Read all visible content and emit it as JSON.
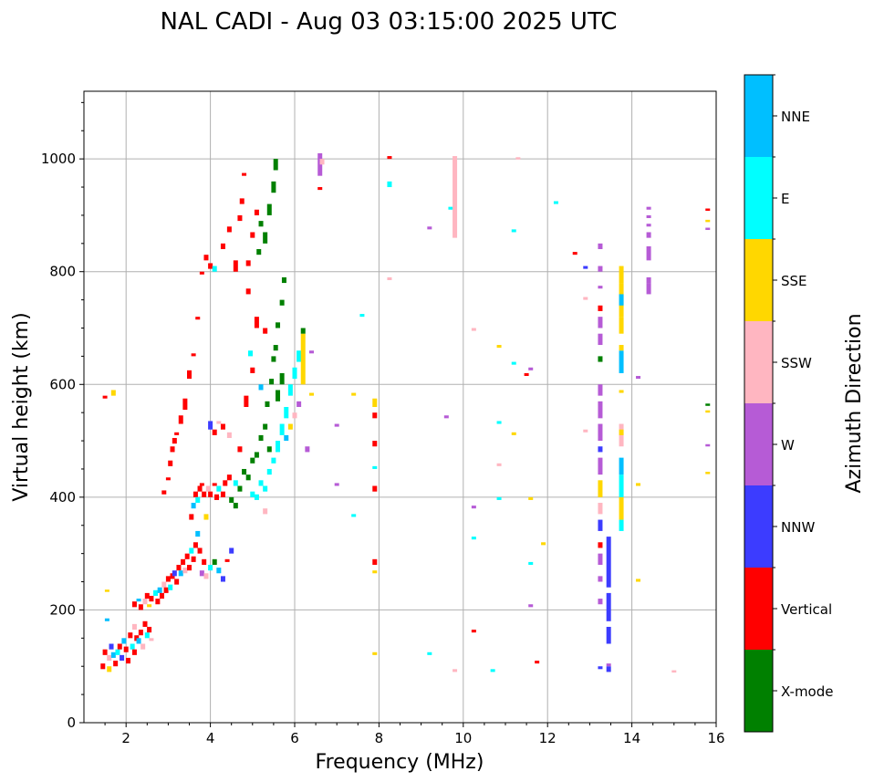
{
  "chart_data": {
    "type": "scatter",
    "title": "NAL CADI - Aug 03 03:15:00 2025 UTC",
    "xlabel": "Frequency (MHz)",
    "ylabel": "Virtual height (km)",
    "xlim": [
      1,
      16
    ],
    "ylim": [
      0,
      1120
    ],
    "xticks": [
      2,
      4,
      6,
      8,
      10,
      12,
      14,
      16
    ],
    "yticks": [
      0,
      200,
      400,
      600,
      800,
      1000
    ],
    "grid": true,
    "colorbar": {
      "label": "Azimuth Direction",
      "placement": "right",
      "categories": [
        {
          "name": "X-mode",
          "color": "#008000"
        },
        {
          "name": "Vertical",
          "color": "#ff0000"
        },
        {
          "name": "NNW",
          "color": "#3c3cff"
        },
        {
          "name": "W",
          "color": "#b65bd6"
        },
        {
          "name": "SSW",
          "color": "#ffb6c1"
        },
        {
          "name": "SSE",
          "color": "#ffd700"
        },
        {
          "name": "E",
          "color": "#00ffff"
        },
        {
          "name": "NNE",
          "color": "#00bfff"
        }
      ]
    },
    "point_format": [
      "freq_MHz",
      "height_low_km",
      "height_high_km",
      "category_index"
    ],
    "points": [
      [
        1.45,
        95,
        105,
        1
      ],
      [
        1.5,
        120,
        130,
        1
      ],
      [
        1.55,
        180,
        185,
        7
      ],
      [
        1.6,
        90,
        100,
        5
      ],
      [
        1.6,
        110,
        120,
        4
      ],
      [
        1.65,
        130,
        140,
        2
      ],
      [
        1.7,
        115,
        125,
        7
      ],
      [
        1.75,
        100,
        110,
        1
      ],
      [
        1.8,
        120,
        130,
        6
      ],
      [
        1.85,
        130,
        140,
        1
      ],
      [
        1.9,
        110,
        120,
        2
      ],
      [
        1.95,
        140,
        150,
        7
      ],
      [
        2.0,
        125,
        135,
        1
      ],
      [
        2.05,
        105,
        115,
        1
      ],
      [
        2.1,
        150,
        160,
        1
      ],
      [
        2.15,
        130,
        140,
        6
      ],
      [
        2.2,
        120,
        130,
        1
      ],
      [
        2.2,
        165,
        175,
        4
      ],
      [
        2.25,
        145,
        155,
        1
      ],
      [
        2.3,
        140,
        150,
        7
      ],
      [
        2.35,
        155,
        165,
        1
      ],
      [
        2.4,
        130,
        140,
        4
      ],
      [
        2.45,
        170,
        180,
        1
      ],
      [
        2.5,
        150,
        160,
        6
      ],
      [
        2.55,
        160,
        170,
        1
      ],
      [
        2.6,
        145,
        150,
        4
      ],
      [
        1.5,
        575,
        580,
        1
      ],
      [
        1.7,
        580,
        590,
        5
      ],
      [
        1.55,
        232,
        236,
        5
      ],
      [
        2.2,
        205,
        215,
        1
      ],
      [
        2.3,
        215,
        220,
        7
      ],
      [
        2.35,
        200,
        210,
        1
      ],
      [
        2.45,
        210,
        220,
        4
      ],
      [
        2.5,
        220,
        230,
        1
      ],
      [
        2.55,
        205,
        210,
        5
      ],
      [
        2.6,
        215,
        225,
        1
      ],
      [
        2.7,
        225,
        235,
        6
      ],
      [
        2.75,
        210,
        220,
        1
      ],
      [
        2.8,
        230,
        240,
        7
      ],
      [
        2.85,
        220,
        230,
        1
      ],
      [
        2.9,
        240,
        250,
        4
      ],
      [
        2.95,
        230,
        240,
        1
      ],
      [
        3.0,
        250,
        260,
        1
      ],
      [
        3.05,
        235,
        245,
        6
      ],
      [
        3.1,
        255,
        265,
        1
      ],
      [
        3.15,
        260,
        270,
        2
      ],
      [
        3.2,
        245,
        255,
        1
      ],
      [
        3.25,
        270,
        280,
        1
      ],
      [
        3.3,
        260,
        270,
        7
      ],
      [
        3.35,
        280,
        290,
        1
      ],
      [
        3.4,
        265,
        275,
        4
      ],
      [
        3.45,
        290,
        300,
        1
      ],
      [
        3.5,
        270,
        280,
        1
      ],
      [
        3.55,
        300,
        310,
        6
      ],
      [
        3.6,
        285,
        295,
        1
      ],
      [
        3.65,
        310,
        320,
        1
      ],
      [
        3.7,
        330,
        340,
        7
      ],
      [
        3.75,
        300,
        310,
        1
      ],
      [
        3.8,
        260,
        270,
        3
      ],
      [
        3.85,
        280,
        290,
        1
      ],
      [
        3.9,
        255,
        265,
        4
      ],
      [
        4.0,
        270,
        280,
        6
      ],
      [
        4.1,
        280,
        290,
        0
      ],
      [
        4.2,
        265,
        275,
        7
      ],
      [
        4.3,
        250,
        260,
        2
      ],
      [
        4.4,
        285,
        290,
        1
      ],
      [
        4.5,
        300,
        310,
        2
      ],
      [
        3.55,
        360,
        370,
        1
      ],
      [
        3.6,
        380,
        390,
        7
      ],
      [
        3.65,
        400,
        410,
        1
      ],
      [
        3.7,
        390,
        400,
        6
      ],
      [
        3.75,
        410,
        420,
        1
      ],
      [
        3.8,
        420,
        425,
        1
      ],
      [
        3.85,
        400,
        410,
        1
      ],
      [
        3.9,
        360,
        370,
        5
      ],
      [
        3.95,
        410,
        420,
        4
      ],
      [
        4.0,
        400,
        410,
        1
      ],
      [
        4.1,
        420,
        425,
        1
      ],
      [
        4.15,
        395,
        405,
        1
      ],
      [
        4.2,
        410,
        420,
        6
      ],
      [
        4.3,
        400,
        410,
        1
      ],
      [
        4.35,
        420,
        430,
        1
      ],
      [
        4.45,
        430,
        440,
        1
      ],
      [
        4.6,
        420,
        430,
        6
      ],
      [
        4.7,
        480,
        490,
        1
      ],
      [
        4.0,
        520,
        535,
        2
      ],
      [
        4.1,
        510,
        520,
        1
      ],
      [
        4.2,
        530,
        535,
        4
      ],
      [
        4.3,
        520,
        530,
        1
      ],
      [
        4.45,
        505,
        515,
        4
      ],
      [
        2.9,
        405,
        412,
        1
      ],
      [
        3.0,
        430,
        435,
        1
      ],
      [
        3.05,
        455,
        465,
        1
      ],
      [
        3.1,
        480,
        490,
        1
      ],
      [
        3.15,
        495,
        505,
        1
      ],
      [
        3.2,
        510,
        515,
        1
      ],
      [
        3.3,
        530,
        545,
        1
      ],
      [
        3.4,
        555,
        575,
        1
      ],
      [
        3.5,
        610,
        625,
        1
      ],
      [
        3.6,
        650,
        655,
        1
      ],
      [
        3.7,
        715,
        720,
        1
      ],
      [
        3.8,
        795,
        800,
        1
      ],
      [
        3.9,
        820,
        830,
        1
      ],
      [
        4.0,
        805,
        815,
        1
      ],
      [
        4.1,
        800,
        810,
        6
      ],
      [
        4.3,
        840,
        850,
        1
      ],
      [
        4.45,
        870,
        880,
        1
      ],
      [
        4.6,
        800,
        820,
        1
      ],
      [
        4.7,
        890,
        900,
        1
      ],
      [
        4.75,
        920,
        930,
        1
      ],
      [
        4.8,
        970,
        975,
        1
      ],
      [
        4.9,
        810,
        820,
        1
      ],
      [
        5.0,
        860,
        870,
        1
      ],
      [
        5.1,
        900,
        910,
        1
      ],
      [
        4.9,
        760,
        770,
        1
      ],
      [
        5.1,
        700,
        720,
        1
      ],
      [
        5.3,
        690,
        700,
        1
      ],
      [
        4.95,
        650,
        660,
        6
      ],
      [
        4.85,
        560,
        580,
        1
      ],
      [
        5.0,
        620,
        630,
        1
      ],
      [
        5.2,
        590,
        600,
        7
      ],
      [
        4.5,
        390,
        400,
        0
      ],
      [
        4.6,
        380,
        390,
        0
      ],
      [
        4.7,
        410,
        420,
        0
      ],
      [
        4.8,
        440,
        450,
        0
      ],
      [
        4.9,
        430,
        440,
        0
      ],
      [
        5.0,
        460,
        470,
        0
      ],
      [
        5.1,
        470,
        480,
        0
      ],
      [
        5.2,
        500,
        510,
        0
      ],
      [
        5.3,
        520,
        530,
        0
      ],
      [
        5.35,
        560,
        570,
        0
      ],
      [
        5.4,
        480,
        490,
        0
      ],
      [
        5.45,
        600,
        610,
        0
      ],
      [
        5.5,
        640,
        650,
        0
      ],
      [
        5.55,
        660,
        670,
        0
      ],
      [
        5.6,
        700,
        710,
        0
      ],
      [
        5.7,
        740,
        750,
        0
      ],
      [
        5.75,
        780,
        790,
        0
      ],
      [
        5.3,
        850,
        870,
        0
      ],
      [
        5.4,
        900,
        920,
        0
      ],
      [
        5.5,
        940,
        960,
        0
      ],
      [
        5.55,
        980,
        1000,
        0
      ],
      [
        5.2,
        880,
        890,
        0
      ],
      [
        5.15,
        830,
        840,
        0
      ],
      [
        5.6,
        570,
        590,
        0
      ],
      [
        5.7,
        600,
        620,
        0
      ],
      [
        5.0,
        400,
        410,
        6
      ],
      [
        5.1,
        395,
        405,
        6
      ],
      [
        5.2,
        420,
        430,
        6
      ],
      [
        5.3,
        410,
        420,
        6
      ],
      [
        5.4,
        440,
        450,
        6
      ],
      [
        5.5,
        460,
        470,
        6
      ],
      [
        5.6,
        480,
        500,
        6
      ],
      [
        5.7,
        510,
        530,
        6
      ],
      [
        5.8,
        540,
        560,
        6
      ],
      [
        5.9,
        580,
        600,
        6
      ],
      [
        6.0,
        610,
        630,
        6
      ],
      [
        6.1,
        640,
        660,
        6
      ],
      [
        5.8,
        500,
        510,
        7
      ],
      [
        5.9,
        520,
        530,
        5
      ],
      [
        6.0,
        540,
        550,
        4
      ],
      [
        6.1,
        560,
        570,
        3
      ],
      [
        6.2,
        600,
        690,
        5
      ],
      [
        6.2,
        690,
        700,
        0
      ],
      [
        6.3,
        480,
        490,
        3
      ],
      [
        6.4,
        580,
        585,
        5
      ],
      [
        5.3,
        370,
        380,
        4
      ],
      [
        6.6,
        970,
        1010,
        3
      ],
      [
        6.65,
        990,
        1000,
        4
      ],
      [
        6.6,
        945,
        950,
        1
      ],
      [
        6.4,
        655,
        660,
        3
      ],
      [
        7.0,
        525,
        530,
        3
      ],
      [
        7.0,
        420,
        425,
        3
      ],
      [
        7.4,
        365,
        370,
        6
      ],
      [
        7.4,
        580,
        585,
        5
      ],
      [
        7.6,
        720,
        725,
        6
      ],
      [
        7.9,
        560,
        575,
        5
      ],
      [
        7.9,
        540,
        550,
        1
      ],
      [
        7.9,
        490,
        500,
        1
      ],
      [
        7.9,
        410,
        420,
        1
      ],
      [
        7.9,
        280,
        290,
        1
      ],
      [
        7.9,
        265,
        270,
        5
      ],
      [
        7.9,
        120,
        125,
        5
      ],
      [
        7.9,
        450,
        455,
        6
      ],
      [
        8.25,
        1000,
        1005,
        1
      ],
      [
        8.25,
        950,
        960,
        6
      ],
      [
        8.25,
        785,
        790,
        4
      ],
      [
        9.2,
        875,
        880,
        3
      ],
      [
        9.6,
        540,
        545,
        3
      ],
      [
        9.7,
        910,
        915,
        6
      ],
      [
        9.8,
        860,
        1005,
        4
      ],
      [
        9.8,
        90,
        95,
        4
      ],
      [
        9.2,
        120,
        125,
        6
      ],
      [
        10.25,
        695,
        700,
        4
      ],
      [
        10.25,
        380,
        385,
        3
      ],
      [
        10.25,
        325,
        330,
        6
      ],
      [
        10.25,
        160,
        165,
        1
      ],
      [
        10.7,
        90,
        95,
        6
      ],
      [
        10.85,
        665,
        670,
        5
      ],
      [
        10.85,
        530,
        535,
        6
      ],
      [
        10.85,
        455,
        460,
        4
      ],
      [
        10.85,
        395,
        400,
        6
      ],
      [
        11.2,
        635,
        640,
        6
      ],
      [
        11.2,
        510,
        515,
        5
      ],
      [
        11.2,
        870,
        875,
        6
      ],
      [
        11.3,
        1000,
        1003,
        4
      ],
      [
        11.5,
        615,
        620,
        1
      ],
      [
        11.6,
        625,
        630,
        3
      ],
      [
        11.6,
        395,
        400,
        5
      ],
      [
        11.6,
        280,
        285,
        6
      ],
      [
        11.6,
        205,
        210,
        3
      ],
      [
        11.75,
        105,
        110,
        1
      ],
      [
        11.9,
        315,
        320,
        5
      ],
      [
        12.2,
        920,
        925,
        6
      ],
      [
        12.65,
        830,
        835,
        1
      ],
      [
        12.9,
        805,
        810,
        2
      ],
      [
        12.9,
        750,
        755,
        4
      ],
      [
        12.9,
        515,
        520,
        4
      ],
      [
        13.25,
        840,
        850,
        3
      ],
      [
        13.25,
        800,
        810,
        3
      ],
      [
        13.25,
        770,
        775,
        3
      ],
      [
        13.25,
        730,
        740,
        1
      ],
      [
        13.25,
        700,
        720,
        3
      ],
      [
        13.25,
        670,
        690,
        3
      ],
      [
        13.25,
        640,
        650,
        0
      ],
      [
        13.25,
        580,
        600,
        3
      ],
      [
        13.25,
        540,
        570,
        3
      ],
      [
        13.25,
        500,
        530,
        3
      ],
      [
        13.25,
        480,
        490,
        2
      ],
      [
        13.25,
        440,
        470,
        3
      ],
      [
        13.25,
        400,
        430,
        5
      ],
      [
        13.25,
        370,
        390,
        4
      ],
      [
        13.25,
        340,
        360,
        2
      ],
      [
        13.25,
        310,
        320,
        1
      ],
      [
        13.25,
        280,
        300,
        3
      ],
      [
        13.25,
        250,
        260,
        3
      ],
      [
        13.25,
        210,
        220,
        3
      ],
      [
        13.25,
        95,
        100,
        2
      ],
      [
        13.45,
        90,
        100,
        2
      ],
      [
        13.45,
        100,
        105,
        3
      ],
      [
        13.45,
        140,
        170,
        2
      ],
      [
        13.45,
        180,
        230,
        2
      ],
      [
        13.45,
        240,
        330,
        2
      ],
      [
        13.75,
        620,
        660,
        7
      ],
      [
        13.75,
        660,
        670,
        5
      ],
      [
        13.75,
        690,
        720,
        5
      ],
      [
        13.75,
        720,
        780,
        5
      ],
      [
        13.75,
        780,
        810,
        5
      ],
      [
        13.75,
        740,
        760,
        7
      ],
      [
        13.75,
        585,
        590,
        5
      ],
      [
        13.75,
        340,
        360,
        6
      ],
      [
        13.75,
        360,
        400,
        5
      ],
      [
        13.75,
        400,
        440,
        6
      ],
      [
        13.75,
        440,
        470,
        7
      ],
      [
        13.75,
        490,
        530,
        4
      ],
      [
        13.75,
        510,
        520,
        5
      ],
      [
        14.15,
        610,
        615,
        3
      ],
      [
        14.15,
        420,
        425,
        5
      ],
      [
        14.15,
        250,
        255,
        5
      ],
      [
        14.4,
        760,
        780,
        3
      ],
      [
        14.4,
        780,
        790,
        3
      ],
      [
        14.4,
        820,
        845,
        3
      ],
      [
        14.4,
        860,
        870,
        3
      ],
      [
        14.4,
        880,
        885,
        3
      ],
      [
        14.4,
        895,
        900,
        3
      ],
      [
        14.4,
        910,
        915,
        3
      ],
      [
        15.0,
        90,
        93,
        4
      ],
      [
        15.8,
        908,
        912,
        1
      ],
      [
        15.8,
        888,
        892,
        5
      ],
      [
        15.8,
        874,
        878,
        3
      ],
      [
        15.8,
        562,
        566,
        0
      ],
      [
        15.8,
        550,
        554,
        5
      ],
      [
        15.8,
        490,
        494,
        3
      ],
      [
        15.8,
        441,
        445,
        5
      ]
    ]
  }
}
